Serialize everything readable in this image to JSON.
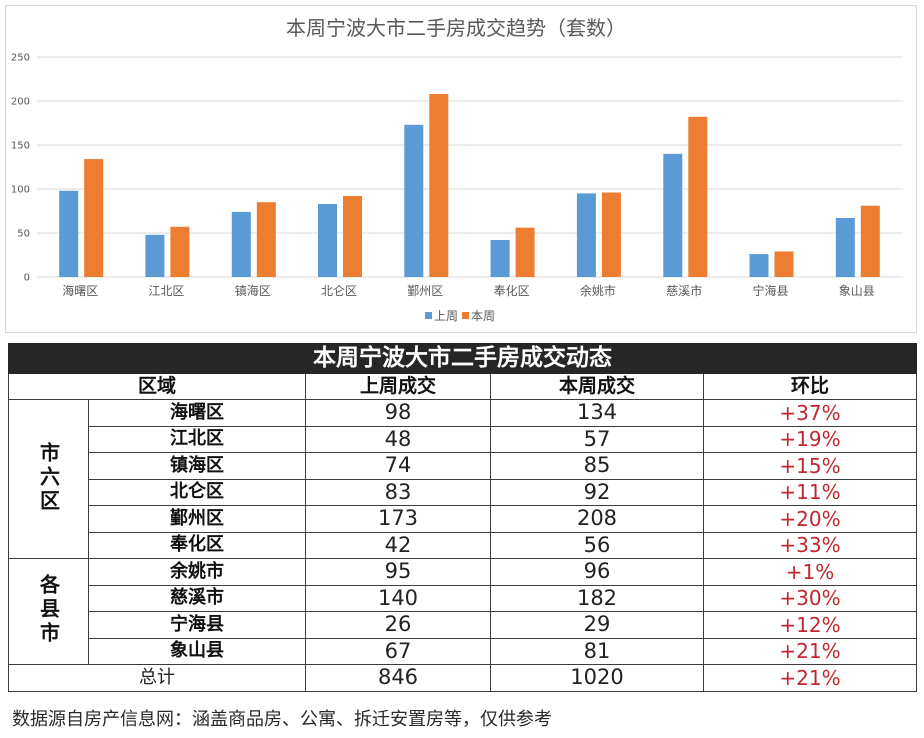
{
  "chart_data": {
    "type": "bar",
    "title": "本周宁波大市二手房成交趋势（套数）",
    "categories": [
      "海曙区",
      "江北区",
      "镇海区",
      "北仑区",
      "鄞州区",
      "奉化区",
      "余姚市",
      "慈溪市",
      "宁海县",
      "象山县"
    ],
    "series": [
      {
        "name": "上周",
        "values": [
          98,
          48,
          74,
          83,
          173,
          42,
          95,
          140,
          26,
          67
        ],
        "color": "#5b9bd5"
      },
      {
        "name": "本周",
        "values": [
          134,
          57,
          85,
          92,
          208,
          56,
          96,
          182,
          29,
          81
        ],
        "color": "#ed7d31"
      }
    ],
    "ylim": [
      0,
      250
    ],
    "yticks": [
      0,
      50,
      100,
      150,
      200,
      250
    ],
    "grid": true,
    "legend": "bottom"
  },
  "table": {
    "title": "本周宁波大市二手房成交动态",
    "headers": {
      "region": "区域",
      "last_week": "上周成交",
      "this_week": "本周成交",
      "change": "环比"
    },
    "groups": [
      {
        "label": "市六区",
        "rows": [
          {
            "district": "海曙区",
            "last_week": "98",
            "this_week": "134",
            "change": "+37%"
          },
          {
            "district": "江北区",
            "last_week": "48",
            "this_week": "57",
            "change": "+19%"
          },
          {
            "district": "镇海区",
            "last_week": "74",
            "this_week": "85",
            "change": "+15%"
          },
          {
            "district": "北仑区",
            "last_week": "83",
            "this_week": "92",
            "change": "+11%"
          },
          {
            "district": "鄞州区",
            "last_week": "173",
            "this_week": "208",
            "change": "+20%"
          },
          {
            "district": "奉化区",
            "last_week": "42",
            "this_week": "56",
            "change": "+33%"
          }
        ]
      },
      {
        "label": "各县市",
        "rows": [
          {
            "district": "余姚市",
            "last_week": "95",
            "this_week": "96",
            "change": "+1%"
          },
          {
            "district": "慈溪市",
            "last_week": "140",
            "this_week": "182",
            "change": "+30%"
          },
          {
            "district": "宁海县",
            "last_week": "26",
            "this_week": "29",
            "change": "+12%"
          },
          {
            "district": "象山县",
            "last_week": "67",
            "this_week": "81",
            "change": "+21%"
          }
        ]
      }
    ],
    "total": {
      "label": "总计",
      "last_week": "846",
      "this_week": "1020",
      "change": "+21%"
    }
  },
  "footer": {
    "note": "数据源自房产信息网：涵盖商品房、公寓、拆迁安置房等，仅供参考"
  },
  "colors": {
    "change_text": "#c0282d",
    "table_title_bg": "#262626",
    "gridline": "#d9d9d9"
  }
}
